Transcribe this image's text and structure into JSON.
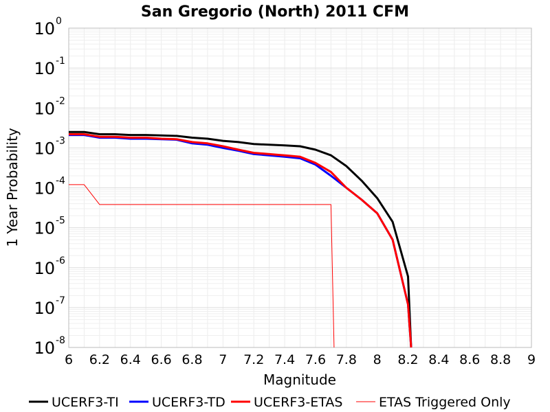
{
  "chart_data": {
    "type": "line",
    "title": "San Gregorio (North) 2011 CFM",
    "xlabel": "Magnitude",
    "ylabel": "1 Year Probability",
    "xlim": [
      6,
      9
    ],
    "ylim": [
      1e-08,
      1
    ],
    "yscale": "log",
    "grid": true,
    "legend_position": "bottom",
    "x_ticks": [
      "6",
      "6.2",
      "6.4",
      "6.6",
      "6.8",
      "7",
      "7.2",
      "7.4",
      "7.6",
      "7.8",
      "8",
      "8.2",
      "8.4",
      "8.6",
      "8.8",
      "9"
    ],
    "y_ticks": [
      {
        "base": "10",
        "exp": "0",
        "value": 1
      },
      {
        "base": "10",
        "exp": "-1",
        "value": 0.1
      },
      {
        "base": "10",
        "exp": "-2",
        "value": 0.01
      },
      {
        "base": "10",
        "exp": "-3",
        "value": 0.001
      },
      {
        "base": "10",
        "exp": "-4",
        "value": 0.0001
      },
      {
        "base": "10",
        "exp": "-5",
        "value": 1e-05
      },
      {
        "base": "10",
        "exp": "-6",
        "value": 1e-06
      },
      {
        "base": "10",
        "exp": "-7",
        "value": 1e-07
      },
      {
        "base": "10",
        "exp": "-8",
        "value": 1e-08
      }
    ],
    "series": [
      {
        "name": "UCERF3-TI",
        "color": "#000000",
        "x": [
          6.0,
          6.1,
          6.2,
          6.3,
          6.4,
          6.5,
          6.6,
          6.7,
          6.8,
          6.9,
          7.0,
          7.1,
          7.2,
          7.3,
          7.4,
          7.5,
          7.6,
          7.7,
          7.8,
          7.9,
          8.0,
          8.1,
          8.2,
          8.22
        ],
        "y": [
          0.0025,
          0.0025,
          0.0022,
          0.0022,
          0.0021,
          0.0021,
          0.00205,
          0.002,
          0.0018,
          0.0017,
          0.0015,
          0.0014,
          0.00125,
          0.0012,
          0.00115,
          0.0011,
          0.0009,
          0.00065,
          0.00035,
          0.00015,
          5.5e-05,
          1.4e-05,
          6e-07,
          1e-08
        ]
      },
      {
        "name": "UCERF3-TD",
        "color": "#0000ff",
        "x": [
          6.0,
          6.1,
          6.2,
          6.3,
          6.4,
          6.5,
          6.6,
          6.7,
          6.8,
          6.9,
          7.0,
          7.1,
          7.2,
          7.3,
          7.4,
          7.5,
          7.6,
          7.7,
          7.8,
          7.9,
          8.0,
          8.1,
          8.2,
          8.22
        ],
        "y": [
          0.0021,
          0.0021,
          0.0018,
          0.0018,
          0.0017,
          0.0017,
          0.00165,
          0.0016,
          0.0013,
          0.0012,
          0.001,
          0.00085,
          0.0007,
          0.00065,
          0.0006,
          0.00055,
          0.00038,
          0.0002,
          0.0001,
          5e-05,
          2.3e-05,
          5e-06,
          1.2e-07,
          1e-08
        ]
      },
      {
        "name": "UCERF3-ETAS",
        "color": "#ff0000",
        "x": [
          6.0,
          6.1,
          6.2,
          6.3,
          6.4,
          6.5,
          6.6,
          6.7,
          6.8,
          6.9,
          7.0,
          7.1,
          7.2,
          7.3,
          7.4,
          7.5,
          7.6,
          7.7,
          7.8,
          7.9,
          8.0,
          8.1,
          8.2,
          8.22
        ],
        "y": [
          0.0022,
          0.0022,
          0.0019,
          0.0019,
          0.0018,
          0.0018,
          0.0017,
          0.00165,
          0.0014,
          0.0013,
          0.0011,
          0.0009,
          0.00075,
          0.0007,
          0.00065,
          0.0006,
          0.00042,
          0.00025,
          0.0001,
          5e-05,
          2.3e-05,
          5e-06,
          1.2e-07,
          1e-08
        ]
      },
      {
        "name": "ETAS Triggered Only",
        "color": "#ff0000",
        "x": [
          6.0,
          6.1,
          6.2,
          6.3,
          6.4,
          6.5,
          6.6,
          6.7,
          6.8,
          6.9,
          7.0,
          7.1,
          7.2,
          7.3,
          7.4,
          7.5,
          7.6,
          7.7,
          7.72
        ],
        "y": [
          0.00012,
          0.00012,
          3.8e-05,
          3.8e-05,
          3.8e-05,
          3.8e-05,
          3.8e-05,
          3.8e-05,
          3.8e-05,
          3.8e-05,
          3.8e-05,
          3.8e-05,
          3.8e-05,
          3.8e-05,
          3.8e-05,
          3.8e-05,
          3.8e-05,
          3.8e-05,
          1e-08
        ]
      }
    ]
  }
}
